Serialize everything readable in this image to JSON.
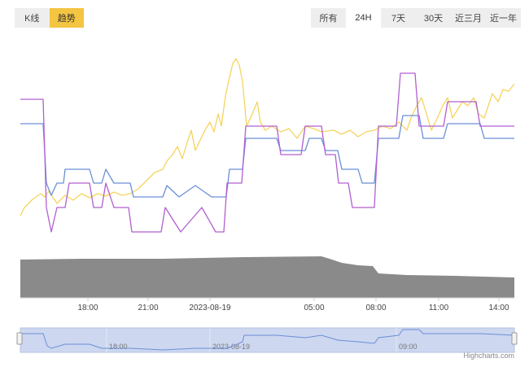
{
  "toolbar": {
    "chart_types": [
      {
        "label": "K线",
        "active": false
      },
      {
        "label": "趋势",
        "active": true
      }
    ],
    "ranges": [
      {
        "label": "所有",
        "active": false
      },
      {
        "label": "24H",
        "active": true
      },
      {
        "label": "7天",
        "active": false
      },
      {
        "label": "30天",
        "active": false
      },
      {
        "label": "近三月",
        "active": false
      },
      {
        "label": "近一年",
        "active": false
      }
    ]
  },
  "colors": {
    "accent": "#f4c542",
    "series_yellow": "#f5d45e",
    "series_blue": "#6b8fd6",
    "series_purple": "#b25fd1",
    "volume": "#8a8a8a",
    "navigator_fill": "#cdd7f0",
    "navigator_line": "#6b8fd6"
  },
  "chart_data": {
    "type": "line",
    "x_tick_labels": [
      "18:00",
      "21:00",
      "2023-08-19",
      "05:00",
      "08:00",
      "11:00",
      "14:00"
    ],
    "navigator_tick_labels": [
      "18:00",
      "2023-08-19",
      "09:00"
    ],
    "credit": "Highcharts.com",
    "grid": false,
    "legend": "none"
  }
}
